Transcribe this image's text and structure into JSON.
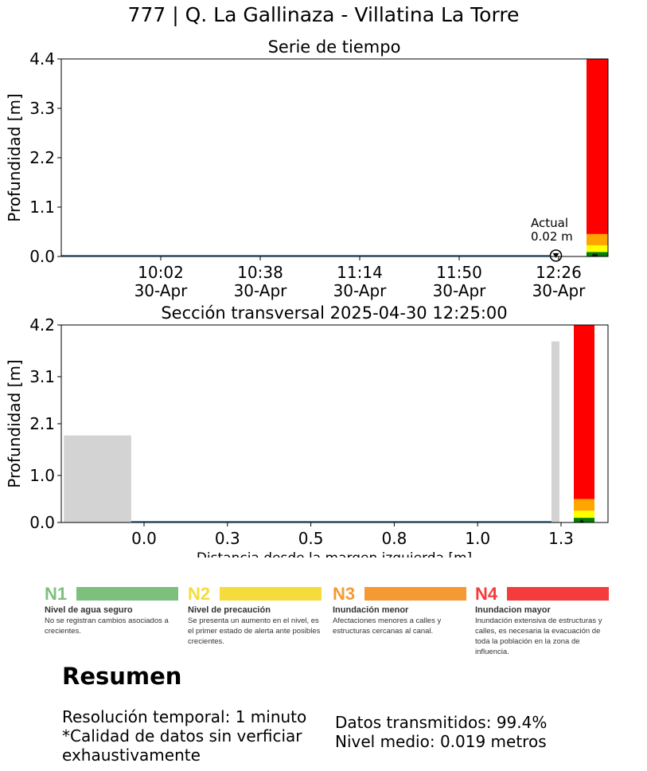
{
  "suptitle": "777 | Q. La Gallinaza - Villatina La Torre",
  "chart_data": [
    {
      "type": "line",
      "title": "Serie de tiempo",
      "ylabel": "Profundidad [m]",
      "xlabel": "",
      "ylim": [
        0,
        4.4
      ],
      "yticks": [
        "0.0",
        "1.1",
        "2.2",
        "3.3",
        "4.4"
      ],
      "xticks": [
        {
          "time": "10:02",
          "date": "30-Apr"
        },
        {
          "time": "10:38",
          "date": "30-Apr"
        },
        {
          "time": "11:14",
          "date": "30-Apr"
        },
        {
          "time": "11:50",
          "date": "30-Apr"
        },
        {
          "time": "12:26",
          "date": "30-Apr"
        }
      ],
      "x_start": "2025-04-30 09:26",
      "x_end": "2025-04-30 12:26",
      "series": [
        {
          "x": [
            "2025-04-30 09:26",
            "2025-04-30 12:25"
          ],
          "values": [
            0.02,
            0.02
          ],
          "color": "#1f77b4"
        }
      ],
      "annotation": {
        "label": "Actual",
        "value_text": "0.02 m",
        "x": "2025-04-30 12:25",
        "y": 0.02
      },
      "level_bands": [
        {
          "from": 0.0,
          "to": 0.1,
          "color": "#008000"
        },
        {
          "from": 0.1,
          "to": 0.25,
          "color": "#ffff00"
        },
        {
          "from": 0.25,
          "to": 0.5,
          "color": "#ffa500"
        },
        {
          "from": 0.5,
          "to": 4.4,
          "color": "#ff0000"
        }
      ]
    },
    {
      "type": "area",
      "title": "Sección transversal 2025-04-30 12:25:00",
      "xlabel": "Distancia desde la margen izquierda [m]",
      "ylabel": "Profundidad [m]",
      "ylim": [
        0,
        4.2
      ],
      "yticks": [
        "0.0",
        "1.0",
        "2.1",
        "3.1",
        "4.2"
      ],
      "xticks": [
        "0.0",
        "0.3",
        "0.5",
        "0.8",
        "1.0",
        "1.3"
      ],
      "xlim": [
        -0.25,
        1.4
      ],
      "ground": [
        {
          "x0": -0.25,
          "x1": -0.04,
          "height": 1.85
        },
        {
          "x0": 1.27,
          "x1": 1.295,
          "height": 3.85
        }
      ],
      "water_level": 0.02,
      "level_bands": [
        {
          "from": 0.0,
          "to": 0.1,
          "color": "#008000"
        },
        {
          "from": 0.1,
          "to": 0.25,
          "color": "#ffff00"
        },
        {
          "from": 0.25,
          "to": 0.5,
          "color": "#ffa500"
        },
        {
          "from": 0.5,
          "to": 4.2,
          "color": "#ff0000"
        }
      ]
    }
  ],
  "legend": [
    {
      "code": "N1",
      "color": "#7dc07d",
      "code_color": "#7dc07d",
      "title": "Nivel de agua seguro",
      "desc": "No se registran cambios asociados a crecientes."
    },
    {
      "code": "N2",
      "color": "#f5dc3c",
      "code_color": "#f5dc3c",
      "title": "Nivel de precaución",
      "desc": "Se presenta un aumento en el nivel, es el primer estado de alerta ante posibles crecientes."
    },
    {
      "code": "N3",
      "color": "#f59a32",
      "code_color": "#f59a32",
      "title": "Inundación menor",
      "desc": "Afectaciones menores a calles y estructuras cercanas al canal."
    },
    {
      "code": "N4",
      "color": "#f53c3c",
      "code_color": "#f53c3c",
      "title": "Inundacion mayor",
      "desc": "Inundación extensiva de estructuras y calles, es necesaria la evacuación de toda la población en la zona de influencia."
    }
  ],
  "summary": {
    "title": "Resumen",
    "resolution": "Resolución temporal: 1 minuto",
    "quality_line1": "*Calidad de datos sin verficiar",
    "quality_line2": "exhaustivamente",
    "transmitted": "Datos transmitidos: 99.4%",
    "mean_level": "Nivel medio: 0.019 metros"
  }
}
